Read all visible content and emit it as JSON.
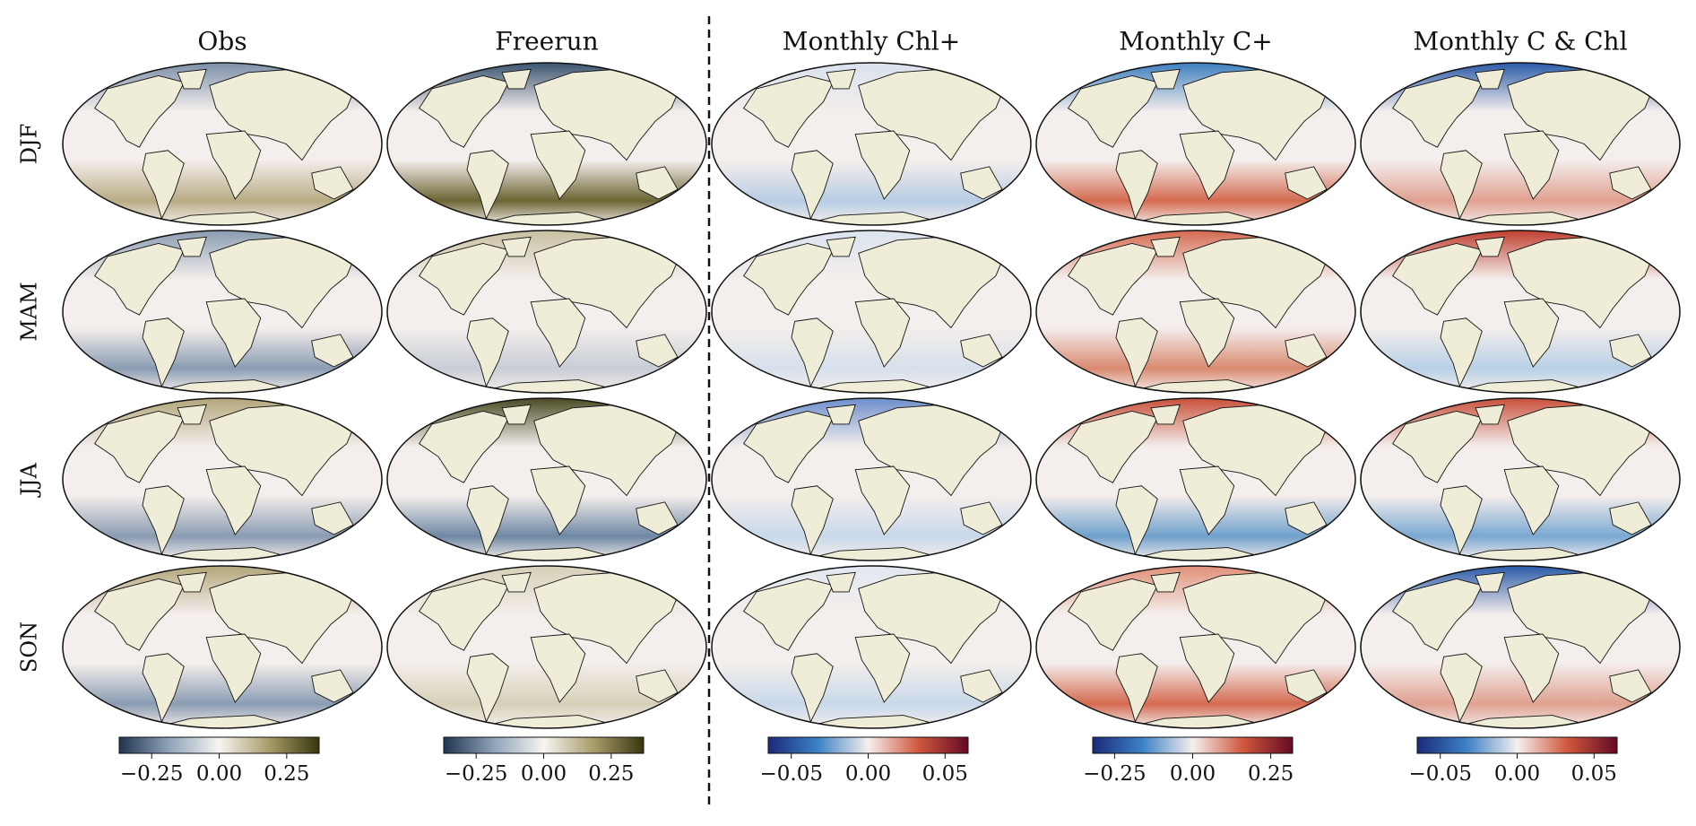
{
  "figure": {
    "rows": [
      "DJF",
      "MAM",
      "JJA",
      "SON"
    ],
    "columns": [
      {
        "title": "Obs",
        "colorbar": {
          "colors": [
            "#1f3550",
            "#8fa3b8",
            "#f7f5f2",
            "#a89c6a",
            "#38360f"
          ],
          "lim": [
            -0.37,
            0.37
          ],
          "ticks": [
            {
              "value": -0.25,
              "label": "−0.25"
            },
            {
              "value": 0,
              "label": "0.00"
            },
            0.25
          ]
        }
      },
      {
        "title": "Freerun",
        "colorbar": {
          "colors": [
            "#1f3550",
            "#8fa3b8",
            "#f7f5f2",
            "#a89c6a",
            "#38360f"
          ],
          "lim": [
            -0.37,
            0.37
          ],
          "ticks": [
            {
              "value": -0.25,
              "label": "−0.25"
            },
            {
              "value": 0,
              "label": "0.00"
            },
            0.25
          ]
        }
      },
      {
        "title": "Monthly Chl+",
        "colorbar": {
          "colors": [
            "#1b2a7a",
            "#3d82c6",
            "#f5f0ee",
            "#d0583e",
            "#650a22"
          ],
          "lim": [
            -0.065,
            0.065
          ],
          "ticks": [
            {
              "value": -0.05,
              "label": "−0.05"
            },
            {
              "value": 0,
              "label": "0.00"
            },
            0.05
          ]
        }
      },
      {
        "title": "Monthly C+",
        "colorbar": {
          "colors": [
            "#1b2a7a",
            "#3d82c6",
            "#f5f0ee",
            "#d0583e",
            "#650a22"
          ],
          "lim": [
            -0.32,
            0.32
          ],
          "ticks": [
            {
              "value": -0.25,
              "label": "−0.25"
            },
            {
              "value": 0,
              "label": "0.00"
            },
            0.25
          ]
        }
      },
      {
        "title": "Monthly C & Chl",
        "colorbar": {
          "colors": [
            "#1b2a7a",
            "#3d82c6",
            "#f5f0ee",
            "#d0583e",
            "#650a22"
          ],
          "lim": [
            -0.065,
            0.065
          ],
          "ticks": [
            {
              "value": -0.05,
              "label": "−0.05"
            },
            {
              "value": 0,
              "label": "0.00"
            },
            0.05
          ]
        }
      }
    ]
  }
}
